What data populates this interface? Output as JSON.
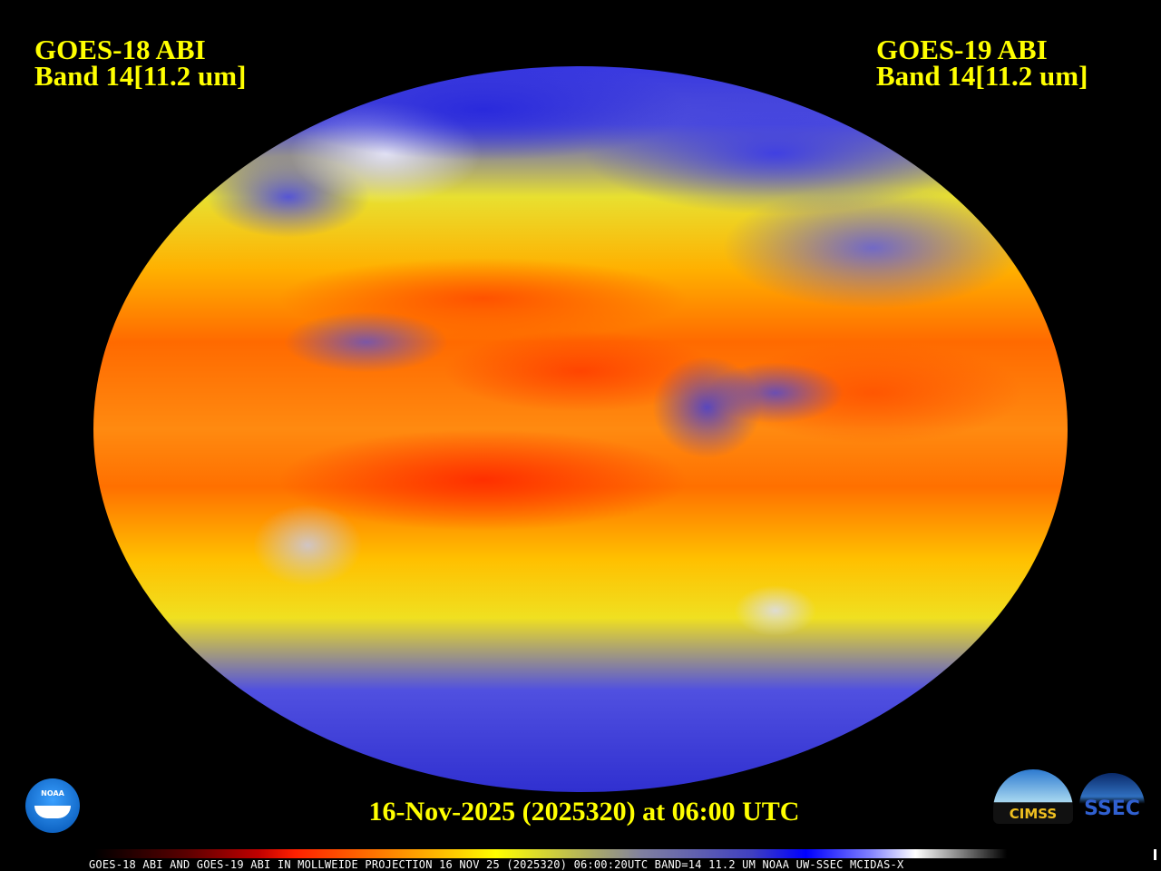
{
  "left_title": {
    "line1": "GOES-18 ABI",
    "line2": "Band 14[11.2 um]"
  },
  "right_title": {
    "line1": "GOES-19 ABI",
    "line2": "Band 14[11.2 um]"
  },
  "date_label": "16-Nov-2025 (2025320) at 06:00 UTC",
  "footer": "GOES-18 ABI AND GOES-19 ABI IN MOLLWEIDE PROJECTION 16 NOV 25 (2025320) 06:00:20UTC BAND=14 11.2 UM NOAA UW-SSEC MCIDAS-X",
  "logos": {
    "noaa": "NOAA",
    "cimss": "CIMSS",
    "ssec": "SSEC"
  },
  "colorbar": {
    "colors": [
      "#000000",
      "#c00000",
      "#ff2000",
      "#ff8000",
      "#ffff00",
      "#8080a0",
      "#0000ff",
      "#ffffff",
      "#808080",
      "#000000"
    ]
  }
}
